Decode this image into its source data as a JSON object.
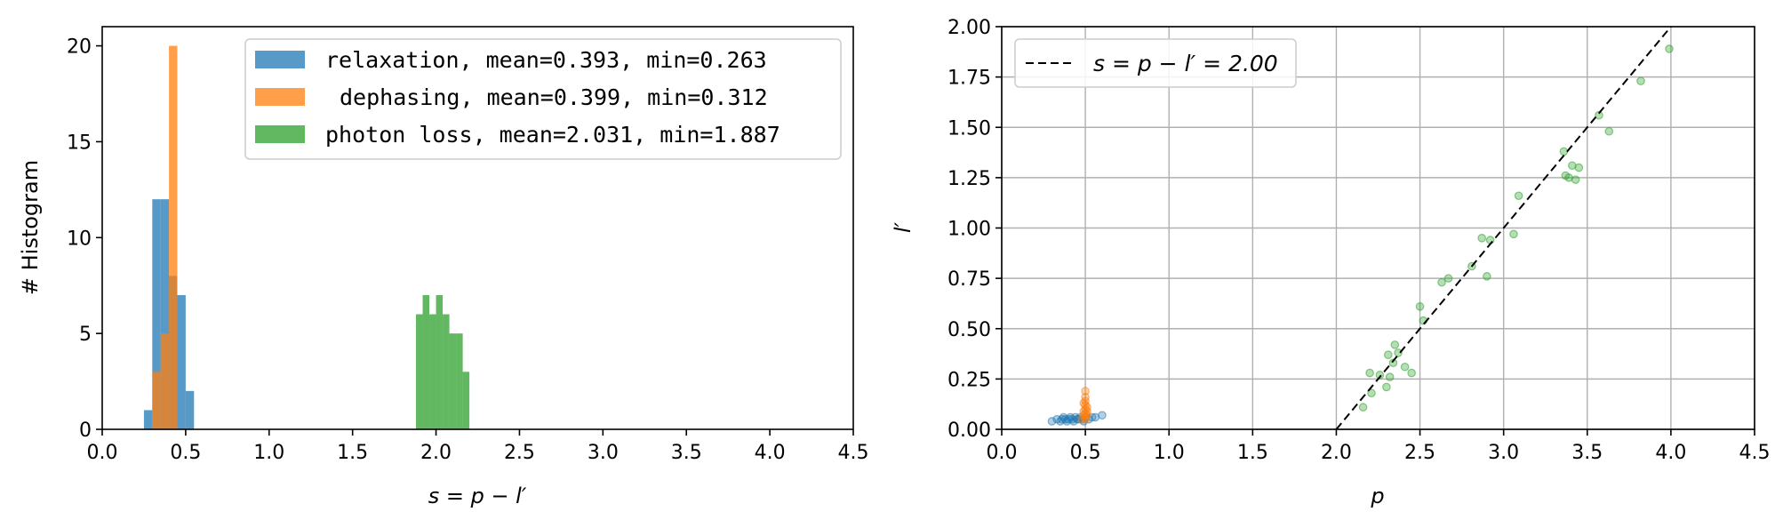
{
  "chart_data": [
    {
      "type": "bar",
      "subtype": "histogram",
      "xlabel": "s = p − l′",
      "ylabel": "# Histogram",
      "xlim": [
        0.0,
        4.5
      ],
      "ylim": [
        0,
        21
      ],
      "xticks": [
        "0.0",
        "0.5",
        "1.0",
        "1.5",
        "2.0",
        "2.5",
        "3.0",
        "3.5",
        "4.0",
        "4.5"
      ],
      "yticks": [
        "0",
        "5",
        "10",
        "15",
        "20"
      ],
      "grid": false,
      "legend_position": "top-right",
      "series": [
        {
          "name": "relaxation, mean=0.393, min=0.263",
          "color": "#1f77b4",
          "bins": [
            {
              "x0": 0.25,
              "x1": 0.3,
              "count": 1
            },
            {
              "x0": 0.3,
              "x1": 0.35,
              "count": 12
            },
            {
              "x0": 0.35,
              "x1": 0.4,
              "count": 12
            },
            {
              "x0": 0.4,
              "x1": 0.45,
              "count": 8
            },
            {
              "x0": 0.45,
              "x1": 0.5,
              "count": 7
            },
            {
              "x0": 0.5,
              "x1": 0.55,
              "count": 2
            }
          ]
        },
        {
          "name": "dephasing, mean=0.399, min=0.312",
          "color": "#ff7f0e",
          "bins": [
            {
              "x0": 0.3,
              "x1": 0.35,
              "count": 3
            },
            {
              "x0": 0.35,
              "x1": 0.4,
              "count": 5
            },
            {
              "x0": 0.4,
              "x1": 0.45,
              "count": 20
            }
          ]
        },
        {
          "name": "photon loss, mean=2.031, min=1.887",
          "color": "#2ca02c",
          "bins": [
            {
              "x0": 1.88,
              "x1": 1.92,
              "count": 6
            },
            {
              "x0": 1.92,
              "x1": 1.96,
              "count": 7
            },
            {
              "x0": 1.96,
              "x1": 2.0,
              "count": 6
            },
            {
              "x0": 2.0,
              "x1": 2.04,
              "count": 7
            },
            {
              "x0": 2.04,
              "x1": 2.08,
              "count": 6
            },
            {
              "x0": 2.08,
              "x1": 2.12,
              "count": 5
            },
            {
              "x0": 2.12,
              "x1": 2.16,
              "count": 5
            },
            {
              "x0": 2.16,
              "x1": 2.2,
              "count": 3
            }
          ]
        }
      ]
    },
    {
      "type": "scatter",
      "xlabel": "p",
      "ylabel": "l′",
      "xlim": [
        0.0,
        4.5
      ],
      "ylim": [
        0.0,
        2.0
      ],
      "xticks": [
        "0.0",
        "0.5",
        "1.0",
        "1.5",
        "2.0",
        "2.5",
        "3.0",
        "3.5",
        "4.0",
        "4.5"
      ],
      "yticks": [
        "0.00",
        "0.25",
        "0.50",
        "0.75",
        "1.00",
        "1.25",
        "1.50",
        "1.75",
        "2.00"
      ],
      "grid": true,
      "legend_position": "top-left",
      "reference_line": {
        "name": "s = p − l′ = 2.00",
        "style": "dashed",
        "color": "#000000",
        "points": [
          [
            2.0,
            0.0
          ],
          [
            4.0,
            2.0
          ]
        ]
      },
      "series": [
        {
          "name": "relaxation",
          "color": "#1f77b4",
          "points": [
            [
              0.3,
              0.04
            ],
            [
              0.33,
              0.05
            ],
            [
              0.35,
              0.04
            ],
            [
              0.36,
              0.05
            ],
            [
              0.37,
              0.06
            ],
            [
              0.38,
              0.05
            ],
            [
              0.39,
              0.04
            ],
            [
              0.4,
              0.05
            ],
            [
              0.41,
              0.06
            ],
            [
              0.42,
              0.05
            ],
            [
              0.43,
              0.04
            ],
            [
              0.44,
              0.06
            ],
            [
              0.45,
              0.05
            ],
            [
              0.46,
              0.05
            ],
            [
              0.47,
              0.06
            ],
            [
              0.48,
              0.05
            ],
            [
              0.49,
              0.04
            ],
            [
              0.5,
              0.06
            ],
            [
              0.52,
              0.05
            ],
            [
              0.54,
              0.06
            ],
            [
              0.56,
              0.06
            ],
            [
              0.6,
              0.07
            ]
          ]
        },
        {
          "name": "dephasing",
          "color": "#ff7f0e",
          "points": [
            [
              0.48,
              0.05
            ],
            [
              0.49,
              0.07
            ],
            [
              0.49,
              0.09
            ],
            [
              0.5,
              0.06
            ],
            [
              0.5,
              0.08
            ],
            [
              0.5,
              0.1
            ],
            [
              0.5,
              0.12
            ],
            [
              0.5,
              0.14
            ],
            [
              0.51,
              0.11
            ],
            [
              0.51,
              0.09
            ],
            [
              0.5,
              0.16
            ],
            [
              0.5,
              0.19
            ],
            [
              0.51,
              0.07
            ],
            [
              0.49,
              0.13
            ],
            [
              0.5,
              0.05
            ]
          ]
        },
        {
          "name": "photon loss",
          "color": "#2ca02c",
          "points": [
            [
              2.16,
              0.11
            ],
            [
              2.2,
              0.28
            ],
            [
              2.21,
              0.18
            ],
            [
              2.26,
              0.27
            ],
            [
              2.3,
              0.21
            ],
            [
              2.31,
              0.37
            ],
            [
              2.32,
              0.26
            ],
            [
              2.34,
              0.33
            ],
            [
              2.35,
              0.42
            ],
            [
              2.37,
              0.38
            ],
            [
              2.41,
              0.31
            ],
            [
              2.45,
              0.28
            ],
            [
              2.5,
              0.61
            ],
            [
              2.52,
              0.54
            ],
            [
              2.63,
              0.73
            ],
            [
              2.67,
              0.75
            ],
            [
              2.81,
              0.81
            ],
            [
              2.87,
              0.95
            ],
            [
              2.9,
              0.76
            ],
            [
              2.92,
              0.94
            ],
            [
              3.06,
              0.97
            ],
            [
              3.09,
              1.16
            ],
            [
              3.36,
              1.38
            ],
            [
              3.37,
              1.26
            ],
            [
              3.39,
              1.25
            ],
            [
              3.41,
              1.31
            ],
            [
              3.43,
              1.24
            ],
            [
              3.45,
              1.3
            ],
            [
              3.57,
              1.56
            ],
            [
              3.63,
              1.48
            ],
            [
              3.82,
              1.73
            ],
            [
              3.99,
              1.89
            ]
          ]
        }
      ]
    }
  ]
}
